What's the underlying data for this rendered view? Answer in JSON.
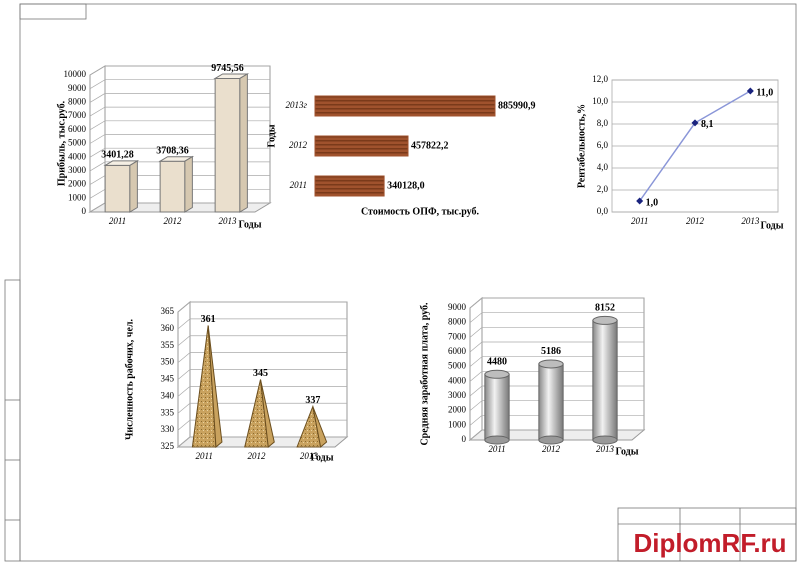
{
  "chart_data": [
    {
      "type": "bar",
      "y_label": "Прибыль, тыс.руб.",
      "x_label": "Годы",
      "categories": [
        "2011",
        "2012",
        "2013"
      ],
      "values": [
        3401.28,
        3708.36,
        9745.56
      ],
      "value_labels": [
        "3401,28",
        "3708,36",
        "9745,56"
      ],
      "color": "#eadfcd",
      "ylim": [
        0,
        10000
      ],
      "yticks": [
        0,
        1000,
        2000,
        3000,
        4000,
        5000,
        6000,
        7000,
        8000,
        9000,
        10000
      ],
      "grid": true
    },
    {
      "type": "barh",
      "y_label": "Годы",
      "x_label": "Стоимость ОПФ, тыс.руб.",
      "categories": [
        "2013г",
        "2012",
        "2011"
      ],
      "values": [
        885990.9,
        457822.2,
        340128.0
      ],
      "value_labels": [
        "885990,9",
        "457822,2",
        "340128,0"
      ],
      "color": "#a0522d"
    },
    {
      "type": "line",
      "y_label": "Рентабельность,%",
      "x_label": "Годы",
      "categories": [
        "2011",
        "2012",
        "2013"
      ],
      "values": [
        1.0,
        8.1,
        11.0
      ],
      "value_labels": [
        "1,0",
        "8,1",
        "11,0"
      ],
      "color": "#8a96d8",
      "marker_color": "#1a237e",
      "ylim": [
        0,
        12
      ],
      "yticks": [
        {
          "value": 0,
          "label": "0,0"
        },
        {
          "value": 2,
          "label": "2,0"
        },
        {
          "value": 4,
          "label": "4,0"
        },
        {
          "value": 6,
          "label": "6,0"
        },
        {
          "value": 8,
          "label": "8,0"
        },
        {
          "value": 10,
          "label": "10,0"
        },
        {
          "value": 12,
          "label": "12,0"
        }
      ],
      "grid": true
    },
    {
      "type": "pyramid",
      "y_label": "Численность рабочих, чел.",
      "x_label": "Годы",
      "categories": [
        "2011",
        "2012",
        "2013"
      ],
      "values": [
        361,
        345,
        337
      ],
      "color": "#c9a25e",
      "ylim": [
        325,
        365
      ],
      "yticks": [
        325,
        330,
        335,
        340,
        345,
        350,
        355,
        360,
        365
      ],
      "grid": true
    },
    {
      "type": "cylinder",
      "y_label": "Средняя заработная плата, руб.",
      "x_label": "Годы",
      "categories": [
        "2011",
        "2012",
        "2013"
      ],
      "values": [
        4480,
        5186,
        8152
      ],
      "color": "#bdbdbd",
      "ylim": [
        0,
        9000
      ],
      "yticks": [
        0,
        1000,
        2000,
        3000,
        4000,
        5000,
        6000,
        7000,
        8000,
        9000
      ],
      "grid": true
    }
  ],
  "watermark": "DiplomRF.ru"
}
